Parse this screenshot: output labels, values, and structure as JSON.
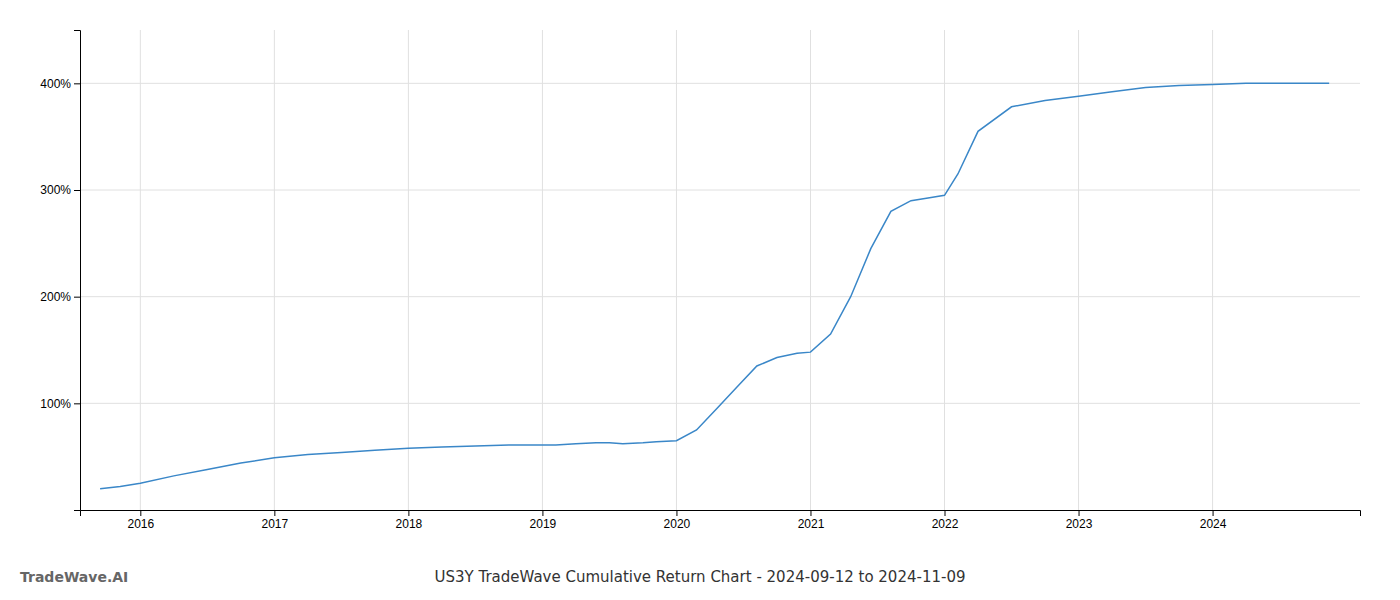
{
  "chart_data": {
    "type": "line",
    "title": "US3Y TradeWave Cumulative Return Chart - 2024-09-12 to 2024-11-09",
    "annotations": [
      "TradeWave.AI"
    ],
    "x": [
      2015.7,
      2015.85,
      2016.0,
      2016.25,
      2016.5,
      2016.75,
      2017.0,
      2017.25,
      2017.5,
      2017.75,
      2018.0,
      2018.25,
      2018.5,
      2018.75,
      2018.9,
      2019.0,
      2019.1,
      2019.25,
      2019.4,
      2019.5,
      2019.6,
      2019.75,
      2019.85,
      2020.0,
      2020.15,
      2020.3,
      2020.45,
      2020.6,
      2020.75,
      2020.9,
      2021.0,
      2021.15,
      2021.3,
      2021.45,
      2021.6,
      2021.75,
      2021.9,
      2022.0,
      2022.1,
      2022.25,
      2022.5,
      2022.75,
      2023.0,
      2023.25,
      2023.5,
      2023.75,
      2024.0,
      2024.25,
      2024.5,
      2024.75,
      2024.87
    ],
    "values": [
      20,
      22,
      25,
      32,
      38,
      44,
      49,
      52,
      54,
      56,
      58,
      59,
      60,
      61,
      61,
      61,
      61,
      62,
      63,
      63,
      62,
      63,
      64,
      65,
      75,
      95,
      115,
      135,
      143,
      147,
      148,
      165,
      200,
      245,
      280,
      290,
      293,
      295,
      315,
      355,
      378,
      384,
      388,
      392,
      396,
      398,
      399,
      400,
      400,
      400,
      400
    ],
    "color": "#3a87c8",
    "xlim": [
      2015.55,
      2025.1
    ],
    "ylim": [
      0,
      450
    ],
    "xticks": [
      2016,
      2017,
      2018,
      2019,
      2020,
      2021,
      2022,
      2023,
      2024
    ],
    "yticks": [
      {
        "value": 100,
        "label": "100%"
      },
      {
        "value": 200,
        "label": "200%"
      },
      {
        "value": 300,
        "label": "300%"
      },
      {
        "value": 400,
        "label": "400%"
      }
    ],
    "grid": true
  }
}
